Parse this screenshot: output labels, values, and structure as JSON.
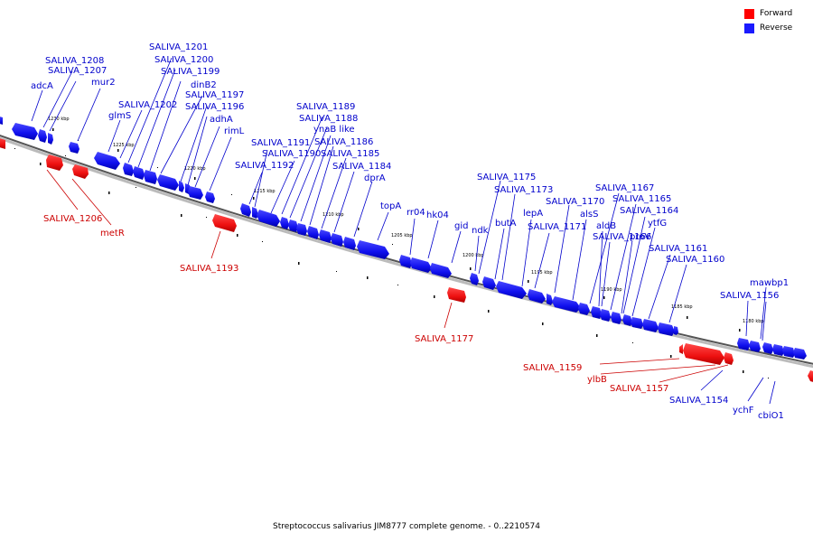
{
  "caption": "Streptococcus salivarius JIM8777 complete genome. - 0..2210574",
  "colors": {
    "forward": "#ff0000",
    "reverse": "#1a1aff",
    "forward_label": "#cc0000",
    "reverse_label": "#0000cc"
  },
  "legend": [
    {
      "label": "Forward",
      "color": "#ff0000"
    },
    {
      "label": "Reverse",
      "color": "#1a1aff"
    }
  ],
  "ticks": [
    "1230 kbp",
    "1225 kbp",
    "1220 kbp",
    "1215 kbp",
    "1210 kbp",
    "1205 kbp",
    "1200 kbp",
    "1195 kbp",
    "1190 kbp",
    "1185 kbp",
    "1180 kbp"
  ],
  "reverse_labels": [
    "adcA",
    "SALIVA_1208",
    "SALIVA_1207",
    "mur2",
    "SALIVA_1201",
    "SALIVA_1200",
    "SALIVA_1199",
    "glmS",
    "SALIVA_1202",
    "dinB2",
    "SALIVA_1197",
    "SALIVA_1196",
    "adhA",
    "rimL",
    "SALIVA_1189",
    "SALIVA_1188",
    "ynaB like",
    "SALIVA_1191",
    "SALIVA_1186",
    "SALIVA_1190",
    "SALIVA_1185",
    "SALIVA_1192",
    "SALIVA_1184",
    "dprA",
    "topA",
    "rr04",
    "hk04",
    "gid",
    "ndk",
    "SALIVA_1175",
    "butA",
    "SALIVA_1173",
    "lepA",
    "SALIVA_1170",
    "SALIVA_1171",
    "alsS",
    "SALIVA_1167",
    "aldB",
    "SALIVA_1165",
    "SALIVA_1164",
    "ytfG",
    "SALIVA_1166",
    "proV",
    "SALIVA_1161",
    "SALIVA_1160",
    "mawbp1",
    "SALIVA_1156",
    "SALIVA_1154",
    "ychF",
    "cbiO1"
  ],
  "forward_labels": [
    "SALIVA_1206",
    "metR",
    "SALIVA_1193",
    "SALIVA_1177",
    "SALIVA_1159",
    "ylbB",
    "SALIVA_1157"
  ]
}
